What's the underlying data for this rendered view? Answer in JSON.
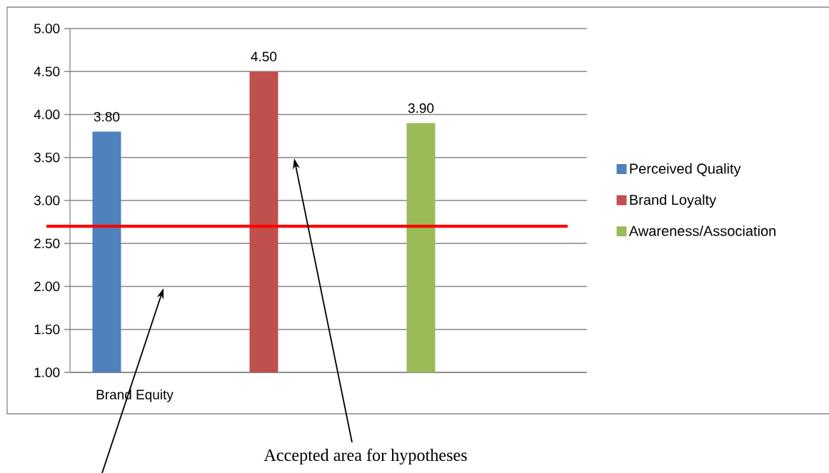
{
  "chart_data": {
    "type": "bar",
    "categories": [
      "Brand Equity",
      null,
      null,
      null
    ],
    "series": [
      {
        "name": "Perceived Quality",
        "color": "#4f81bd",
        "values": [
          3.8,
          null,
          null,
          null
        ],
        "value_labels": [
          "3.80",
          null,
          null,
          null
        ]
      },
      {
        "name": "Brand Loyalty",
        "color": "#c0504d",
        "values": [
          null,
          4.5,
          null,
          null
        ],
        "value_labels": [
          null,
          "4.50",
          null,
          null
        ]
      },
      {
        "name": "Awareness/Association",
        "color": "#9bbb59",
        "values": [
          null,
          null,
          3.9,
          null
        ],
        "value_labels": [
          null,
          null,
          "3.90",
          null
        ]
      }
    ],
    "ylim": [
      1,
      5
    ],
    "yticks": [
      {
        "value": 1,
        "label": "1.00"
      },
      {
        "value": 1.5,
        "label": "1.50"
      },
      {
        "value": 2,
        "label": "2.00"
      },
      {
        "value": 2.5,
        "label": "2.50"
      },
      {
        "value": 3,
        "label": "3.00"
      },
      {
        "value": 3.5,
        "label": "3.50"
      },
      {
        "value": 4,
        "label": "4.00"
      },
      {
        "value": 4.5,
        "label": "4.50"
      },
      {
        "value": 5,
        "label": "5.00"
      }
    ],
    "grid": "y",
    "legend": "right",
    "ref_lines": [
      {
        "axis": "y",
        "value": 2.7,
        "color": "#ff0000"
      }
    ],
    "annotations": [
      "Accepted area for hypotheses"
    ]
  }
}
